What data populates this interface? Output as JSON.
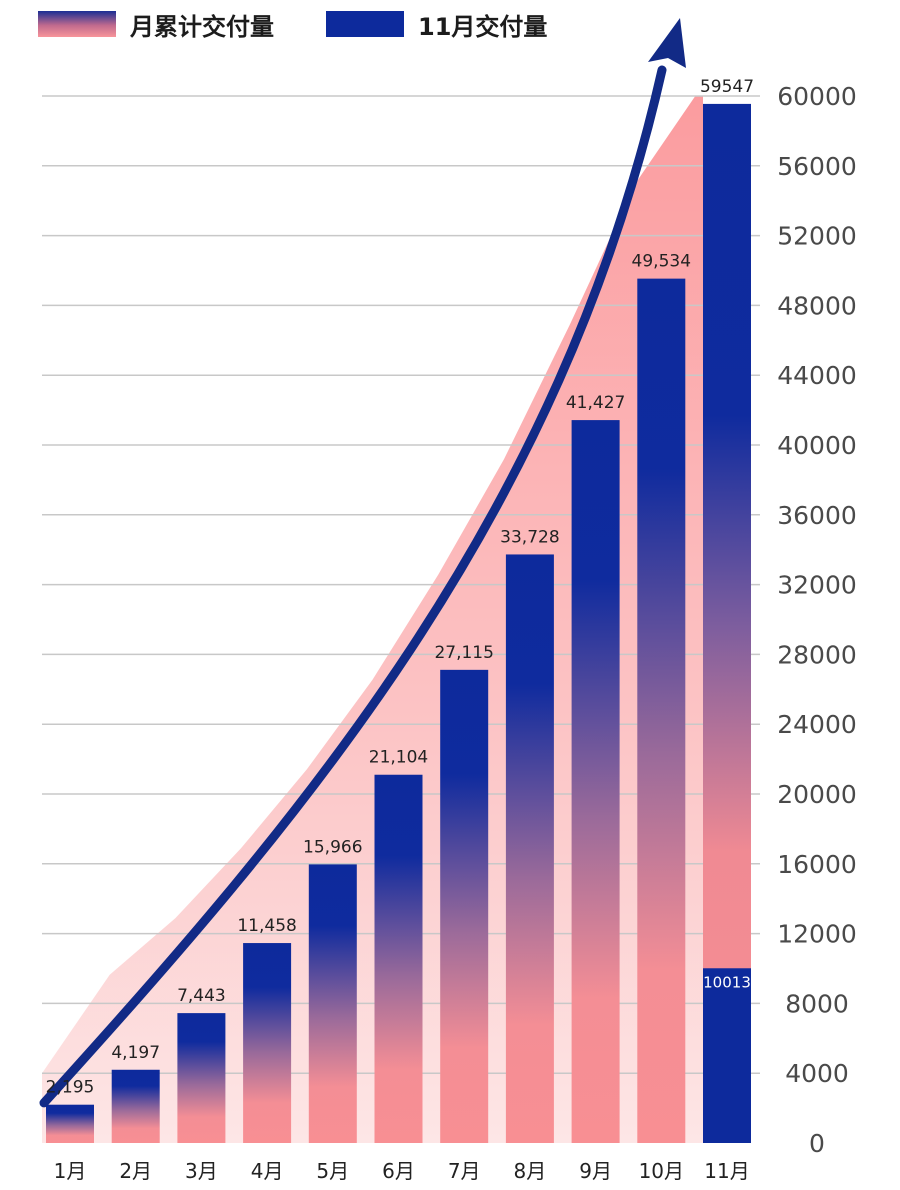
{
  "legend": {
    "cumulative_label": "月累计交付量",
    "monthly_label": "11月交付量"
  },
  "colors": {
    "bar_dark": "#0d2a9c",
    "bar_pink": "#f88f93",
    "area_pink": "#fb9c9f",
    "area_light": "#fde6e6",
    "arrow": "#122a86",
    "grid": "#c8c8c8"
  },
  "chart_data": {
    "type": "bar",
    "categories": [
      "1月",
      "2月",
      "3月",
      "4月",
      "5月",
      "6月",
      "7月",
      "8月",
      "9月",
      "10月",
      "11月"
    ],
    "series": [
      {
        "name": "月累计交付量",
        "values": [
          2195,
          4197,
          7443,
          11458,
          15966,
          21104,
          27115,
          33728,
          41427,
          49534,
          59547
        ]
      },
      {
        "name": "11月交付量",
        "values": [
          null,
          null,
          null,
          null,
          null,
          null,
          null,
          null,
          null,
          null,
          10013
        ]
      }
    ],
    "data_labels": [
      "2,195",
      "4,197",
      "7,443",
      "11,458",
      "15,966",
      "21,104",
      "27,115",
      "33,728",
      "41,427",
      "49,534",
      "59547"
    ],
    "monthly_data_label": "10013",
    "y_ticks": [
      0,
      4000,
      8000,
      12000,
      16000,
      20000,
      24000,
      28000,
      32000,
      36000,
      40000,
      44000,
      48000,
      52000,
      56000,
      60000
    ],
    "ylim": [
      0,
      60000
    ],
    "y_axis_position": "right",
    "grid": true,
    "legend_position": "top-left"
  }
}
